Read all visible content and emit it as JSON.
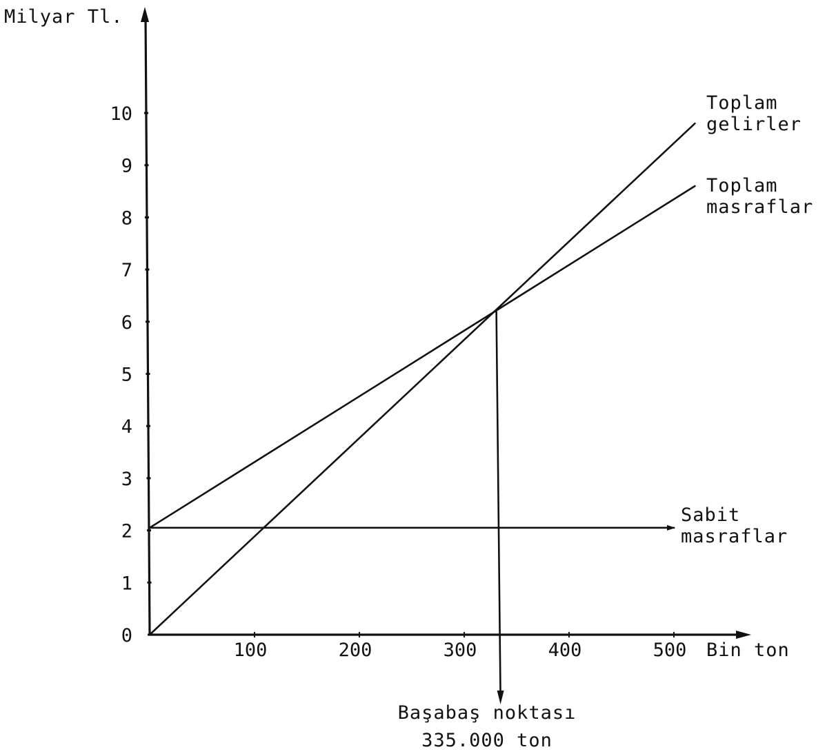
{
  "chart_data": {
    "type": "line",
    "ylabel": "Milyar Tl.",
    "xlabel": "Bin ton",
    "xlim": [
      0,
      525
    ],
    "ylim": [
      0,
      11
    ],
    "x_ticks": [
      {
        "value": 100,
        "label": "100"
      },
      {
        "value": 200,
        "label": "200"
      },
      {
        "value": 300,
        "label": "300"
      },
      {
        "value": 400,
        "label": "400"
      },
      {
        "value": 500,
        "label": "500"
      }
    ],
    "y_ticks": [
      {
        "value": 0,
        "label": "0"
      },
      {
        "value": 1,
        "label": "1"
      },
      {
        "value": 2,
        "label": "2"
      },
      {
        "value": 3,
        "label": "3"
      },
      {
        "value": 4,
        "label": "4"
      },
      {
        "value": 5,
        "label": "5"
      },
      {
        "value": 6,
        "label": "6"
      },
      {
        "value": 7,
        "label": "7"
      },
      {
        "value": 8,
        "label": "8"
      },
      {
        "value": 9,
        "label": "9"
      },
      {
        "value": 10,
        "label": "10"
      }
    ],
    "series": [
      {
        "name": "Toplam gelirler",
        "name_lines": [
          "Toplam",
          "gelirler"
        ],
        "x": [
          0,
          520
        ],
        "y": [
          0,
          9.8
        ]
      },
      {
        "name": "Toplam masraflar",
        "name_lines": [
          "Toplam",
          "masraflar"
        ],
        "x": [
          0,
          520
        ],
        "y": [
          2.05,
          8.6
        ]
      },
      {
        "name": "Sabit masraflar",
        "name_lines": [
          "Sabit",
          "masraflar"
        ],
        "x": [
          0,
          500
        ],
        "y": [
          2.05,
          2.05
        ]
      }
    ],
    "annotation": {
      "x": 330,
      "y": 6.2,
      "lines": [
        "Başabaş noktası",
        "335.000 ton"
      ]
    },
    "grid": false,
    "legend": "none"
  }
}
